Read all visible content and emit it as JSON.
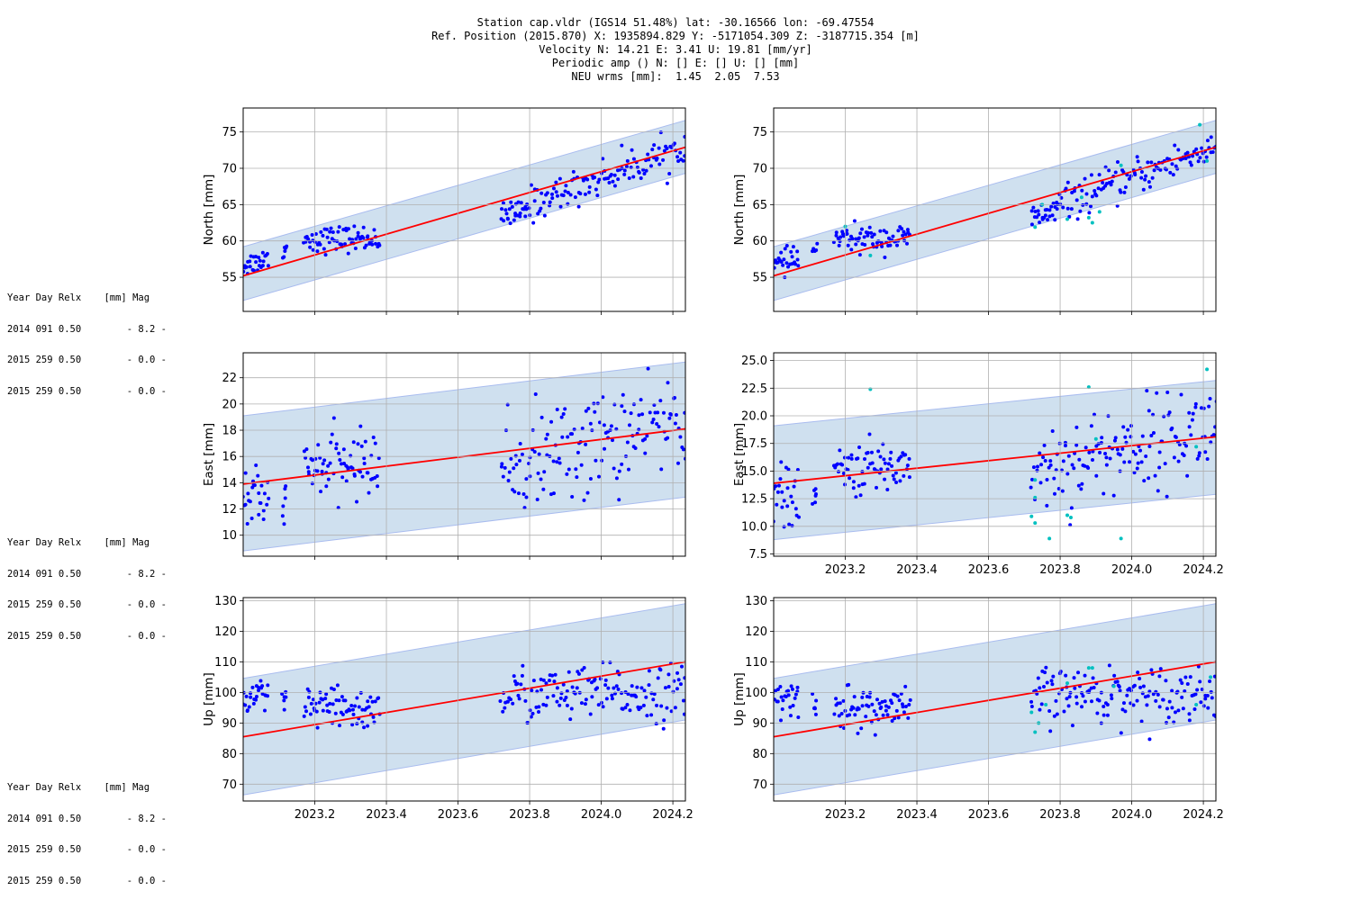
{
  "header": {
    "lines": [
      "Station cap.vldr (IGS14 51.48%) lat: -30.16566 lon: -69.47554",
      "Ref. Position (2015.870) X: 1935894.829 Y: -5171054.309 Z: -3187715.354 [m]",
      "Velocity N: 14.21 E: 3.41 U: 19.81 [mm/yr]",
      "Periodic amp () N: [] E: [] U: [] [mm]",
      "NEU wrms [mm]:  1.45  2.05  7.53"
    ]
  },
  "side_table": {
    "header": "Year Day Relx    [mm] Mag",
    "rows": [
      "2014 091 0.50        - 8.2 -",
      "2015 259 0.50        - 0.0 -",
      "2015 259 0.50        - 0.0 -"
    ]
  },
  "colors": {
    "band": "#cfe0ef",
    "band_edge": "#a9bcef",
    "model": "#ff0000",
    "obs": "#0000ff",
    "outlier": "#00c0c0",
    "grid": "#b0b0b0"
  },
  "chart_data": [
    {
      "type": "scatter",
      "component": "N",
      "ylabel": "North [mm]",
      "xlim": [
        2023.0,
        2024.235
      ],
      "ylim": [
        50.3,
        78.3
      ],
      "xticks": [
        "2023.2",
        "2023.4",
        "2023.6",
        "2023.8",
        "2024.0",
        "2024.2"
      ],
      "xticklabels_shown": false,
      "yticks": [
        "55",
        "60",
        "65",
        "70",
        "75"
      ],
      "model_line": [
        [
          2023.0,
          55.2
        ],
        [
          2024.235,
          72.9
        ]
      ],
      "band": {
        "upper": [
          [
            2023.0,
            59.2
          ],
          [
            2024.235,
            76.6
          ]
        ],
        "lower": [
          [
            2023.0,
            51.8
          ],
          [
            2024.235,
            69.3
          ]
        ]
      },
      "clusters": [
        {
          "x": [
            2023.0,
            2023.07
          ],
          "y": [
            56.6,
            57.6
          ],
          "n": 26,
          "sd": 0.8
        },
        {
          "x": [
            2023.11,
            2023.12
          ],
          "y": [
            58.3,
            59.3
          ],
          "n": 6,
          "sd": 0.4
        },
        {
          "x": [
            2023.17,
            2023.38
          ],
          "y": [
            60.2,
            60.4
          ],
          "n": 70,
          "sd": 0.9
        },
        {
          "x": [
            2023.72,
            2023.79
          ],
          "y": [
            63.2,
            64.1
          ],
          "n": 25,
          "sd": 0.9
        },
        {
          "x": [
            2023.79,
            2024.235
          ],
          "y": [
            64.8,
            73.0
          ],
          "n": 120,
          "sd": 1.2
        }
      ]
    },
    {
      "type": "scatter",
      "component": "N",
      "ylabel": "North [mm]",
      "xlim": [
        2023.0,
        2024.235
      ],
      "ylim": [
        50.3,
        78.3
      ],
      "xticks": [
        "2023.2",
        "2023.4",
        "2023.6",
        "2023.8",
        "2024.0",
        "2024.2"
      ],
      "xticklabels_shown": false,
      "yticks": [
        "55",
        "60",
        "65",
        "70",
        "75"
      ],
      "model_line": [
        [
          2023.0,
          55.2
        ],
        [
          2024.235,
          72.9
        ]
      ],
      "band": {
        "upper": [
          [
            2023.0,
            59.2
          ],
          [
            2024.235,
            76.6
          ]
        ],
        "lower": [
          [
            2023.0,
            51.8
          ],
          [
            2024.235,
            69.3
          ]
        ]
      },
      "clusters": [
        {
          "x": [
            2023.0,
            2023.07
          ],
          "y": [
            56.6,
            57.6
          ],
          "n": 26,
          "sd": 0.8
        },
        {
          "x": [
            2023.11,
            2023.12
          ],
          "y": [
            58.3,
            59.3
          ],
          "n": 6,
          "sd": 0.4
        },
        {
          "x": [
            2023.17,
            2023.38
          ],
          "y": [
            60.2,
            60.4
          ],
          "n": 70,
          "sd": 0.9
        },
        {
          "x": [
            2023.72,
            2023.79
          ],
          "y": [
            63.2,
            64.1
          ],
          "n": 25,
          "sd": 0.9
        },
        {
          "x": [
            2023.79,
            2024.235
          ],
          "y": [
            64.8,
            73.0
          ],
          "n": 120,
          "sd": 1.2
        }
      ],
      "outliers": [
        [
          2023.2,
          62.0
        ],
        [
          2023.27,
          58.0
        ],
        [
          2023.73,
          61.9
        ],
        [
          2023.75,
          65.0
        ],
        [
          2023.82,
          63.0
        ],
        [
          2023.86,
          66.0
        ],
        [
          2023.88,
          63.2
        ],
        [
          2023.89,
          62.5
        ],
        [
          2023.91,
          64.0
        ],
        [
          2023.97,
          70.4
        ],
        [
          2024.19,
          76.0
        ],
        [
          2024.21,
          71.0
        ]
      ]
    },
    {
      "type": "scatter",
      "component": "E",
      "ylabel": "East [mm]",
      "xlim": [
        2023.0,
        2024.235
      ],
      "ylim": [
        8.4,
        23.9
      ],
      "xticks": [
        "2023.2",
        "2023.4",
        "2023.6",
        "2023.8",
        "2024.0",
        "2024.2"
      ],
      "xticklabels_shown": false,
      "yticks": [
        "10",
        "12",
        "14",
        "16",
        "18",
        "20",
        "22"
      ],
      "model_line": [
        [
          2023.0,
          13.9
        ],
        [
          2024.235,
          18.1
        ]
      ],
      "band": {
        "upper": [
          [
            2023.0,
            19.1
          ],
          [
            2024.235,
            23.2
          ]
        ],
        "lower": [
          [
            2023.0,
            8.8
          ],
          [
            2024.235,
            12.9
          ]
        ]
      },
      "clusters": [
        {
          "x": [
            2023.0,
            2023.07
          ],
          "y": [
            13.0,
            12.2
          ],
          "n": 26,
          "sd": 1.3
        },
        {
          "x": [
            2023.11,
            2023.12
          ],
          "y": [
            12.4,
            12.8
          ],
          "n": 6,
          "sd": 0.6
        },
        {
          "x": [
            2023.17,
            2023.38
          ],
          "y": [
            15.0,
            15.6
          ],
          "n": 70,
          "sd": 1.2
        },
        {
          "x": [
            2023.72,
            2024.235
          ],
          "y": [
            15.0,
            19.0
          ],
          "n": 150,
          "sd": 2.0
        }
      ]
    },
    {
      "type": "scatter",
      "component": "E",
      "ylabel": "East [mm]",
      "xlim": [
        2023.0,
        2024.235
      ],
      "ylim": [
        7.3,
        25.7
      ],
      "xticks": [
        "2023.2",
        "2023.4",
        "2023.6",
        "2023.8",
        "2024.0",
        "2024.2"
      ],
      "xticklabels_shown": true,
      "yticks": [
        "7.5",
        "10.0",
        "12.5",
        "15.0",
        "17.5",
        "20.0",
        "22.5",
        "25.0"
      ],
      "model_line": [
        [
          2023.0,
          13.9
        ],
        [
          2024.235,
          18.1
        ]
      ],
      "band": {
        "upper": [
          [
            2023.0,
            19.1
          ],
          [
            2024.235,
            23.2
          ]
        ],
        "lower": [
          [
            2023.0,
            8.8
          ],
          [
            2024.235,
            12.9
          ]
        ]
      },
      "clusters": [
        {
          "x": [
            2023.0,
            2023.07
          ],
          "y": [
            13.0,
            12.2
          ],
          "n": 26,
          "sd": 1.3
        },
        {
          "x": [
            2023.11,
            2023.12
          ],
          "y": [
            12.4,
            12.8
          ],
          "n": 6,
          "sd": 0.6
        },
        {
          "x": [
            2023.17,
            2023.38
          ],
          "y": [
            15.0,
            15.6
          ],
          "n": 70,
          "sd": 1.2
        },
        {
          "x": [
            2023.72,
            2024.235
          ],
          "y": [
            15.0,
            19.0
          ],
          "n": 150,
          "sd": 2.0
        }
      ],
      "outliers": [
        [
          2023.27,
          22.4
        ],
        [
          2023.72,
          10.9
        ],
        [
          2023.73,
          10.3
        ],
        [
          2023.73,
          12.6
        ],
        [
          2023.73,
          14.2
        ],
        [
          2023.77,
          8.9
        ],
        [
          2023.82,
          11.0
        ],
        [
          2023.83,
          10.8
        ],
        [
          2023.88,
          22.6
        ],
        [
          2023.9,
          17.9
        ],
        [
          2023.97,
          8.9
        ],
        [
          2024.18,
          17.2
        ],
        [
          2024.21,
          24.2
        ]
      ]
    },
    {
      "type": "scatter",
      "component": "U",
      "ylabel": "Up [mm]",
      "xlim": [
        2023.0,
        2024.235
      ],
      "ylim": [
        64.5,
        131.0
      ],
      "xticks": [
        "2023.2",
        "2023.4",
        "2023.6",
        "2023.8",
        "2024.0",
        "2024.2"
      ],
      "xticklabels_shown": true,
      "yticks": [
        "70",
        "80",
        "90",
        "100",
        "110",
        "120",
        "130"
      ],
      "model_line": [
        [
          2023.0,
          85.5
        ],
        [
          2024.235,
          110.0
        ]
      ],
      "band": {
        "upper": [
          [
            2023.0,
            104.6
          ],
          [
            2024.235,
            129.0
          ]
        ],
        "lower": [
          [
            2023.0,
            66.5
          ],
          [
            2024.235,
            91.0
          ]
        ]
      },
      "clusters": [
        {
          "x": [
            2023.0,
            2023.07
          ],
          "y": [
            97.5,
            97.5
          ],
          "n": 26,
          "sd": 3.5
        },
        {
          "x": [
            2023.11,
            2023.12
          ],
          "y": [
            97.0,
            97.0
          ],
          "n": 6,
          "sd": 2.0
        },
        {
          "x": [
            2023.17,
            2023.38
          ],
          "y": [
            95.0,
            94.0
          ],
          "n": 70,
          "sd": 3.5
        },
        {
          "x": [
            2023.72,
            2024.235
          ],
          "y": [
            99.0,
            100.0
          ],
          "n": 150,
          "sd": 4.5
        }
      ]
    },
    {
      "type": "scatter",
      "component": "U",
      "ylabel": "Up [mm]",
      "xlim": [
        2023.0,
        2024.235
      ],
      "ylim": [
        64.5,
        131.0
      ],
      "xticks": [
        "2023.2",
        "2023.4",
        "2023.6",
        "2023.8",
        "2024.0",
        "2024.2"
      ],
      "xticklabels_shown": true,
      "yticks": [
        "70",
        "80",
        "90",
        "100",
        "110",
        "120",
        "130"
      ],
      "model_line": [
        [
          2023.0,
          85.5
        ],
        [
          2024.235,
          110.0
        ]
      ],
      "band": {
        "upper": [
          [
            2023.0,
            104.6
          ],
          [
            2024.235,
            129.0
          ]
        ],
        "lower": [
          [
            2023.0,
            66.5
          ],
          [
            2024.235,
            91.0
          ]
        ]
      },
      "clusters": [
        {
          "x": [
            2023.0,
            2023.07
          ],
          "y": [
            97.5,
            97.5
          ],
          "n": 26,
          "sd": 3.5
        },
        {
          "x": [
            2023.11,
            2023.12
          ],
          "y": [
            97.0,
            97.0
          ],
          "n": 6,
          "sd": 2.0
        },
        {
          "x": [
            2023.17,
            2023.38
          ],
          "y": [
            95.0,
            94.0
          ],
          "n": 70,
          "sd": 3.5
        },
        {
          "x": [
            2023.72,
            2024.235
          ],
          "y": [
            99.0,
            100.0
          ],
          "n": 150,
          "sd": 4.5
        }
      ],
      "outliers": [
        [
          2023.72,
          93.5
        ],
        [
          2023.73,
          87.0
        ],
        [
          2023.74,
          90.0
        ],
        [
          2023.76,
          96.0
        ],
        [
          2023.82,
          103.0
        ],
        [
          2023.88,
          108.0
        ],
        [
          2023.89,
          108.0
        ],
        [
          2023.95,
          102.0
        ],
        [
          2024.18,
          96.0
        ],
        [
          2024.22,
          105.0
        ]
      ]
    }
  ]
}
